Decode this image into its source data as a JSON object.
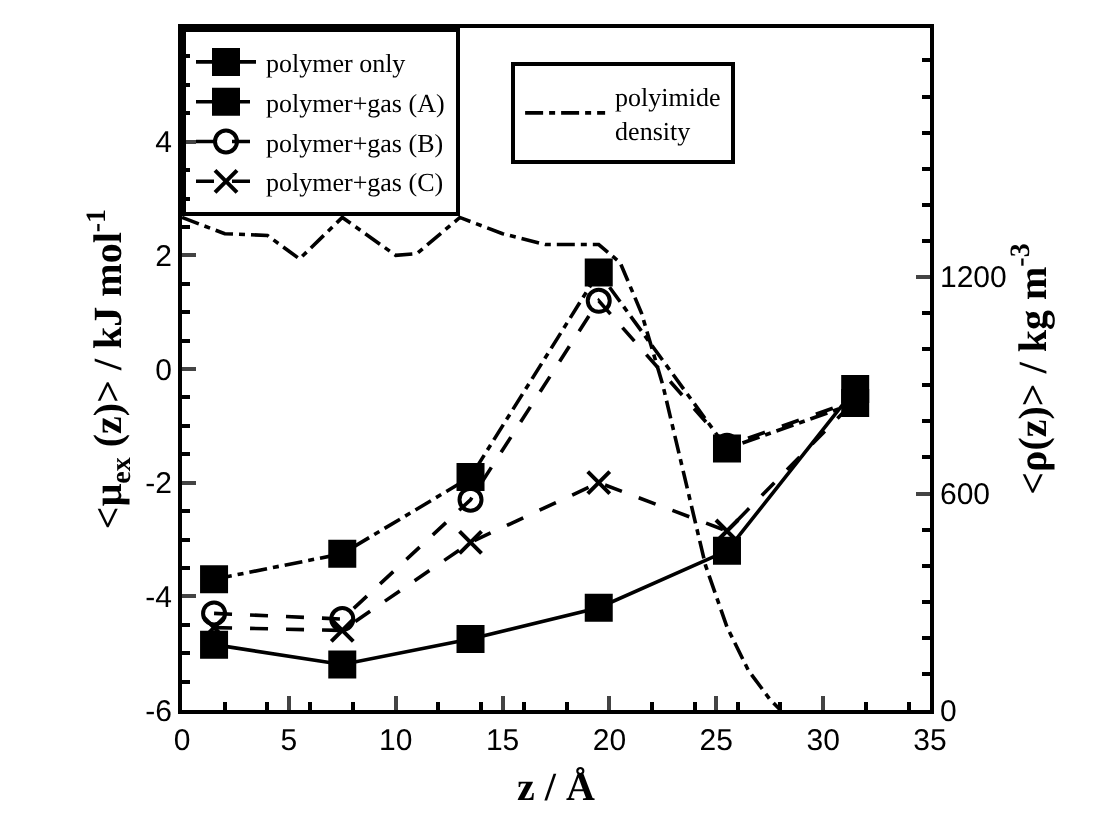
{
  "chart_data": {
    "type": "line",
    "xlabel": "z / Å",
    "ylabel": "<μ$_{ex}$ (z)> / kJ mol$^{-1}$",
    "y2label": "<ρ(z)> / kg m$^{-3}$",
    "xlim": [
      0,
      35
    ],
    "xticks": [
      0,
      5,
      10,
      15,
      20,
      25,
      30,
      35
    ],
    "ylim": [
      -6,
      6
    ],
    "yticks": [
      -6,
      -4,
      -2,
      0,
      2,
      4
    ],
    "y2lim": [
      0,
      1890
    ],
    "y2ticks": [
      0,
      600,
      1200
    ],
    "legend": "top left",
    "series": [
      {
        "name": "polymer only",
        "color": "#000000",
        "marker": "square",
        "line_style": "solid",
        "x": [
          1.5,
          7.5,
          13.5,
          19.5,
          25.5,
          31.5
        ],
        "values": [
          -4.85,
          -5.2,
          -4.75,
          -4.2,
          -3.2,
          -0.35
        ]
      },
      {
        "name": "polymer+gas (A)",
        "color": "#000000",
        "marker": "square",
        "line_style": "dotted",
        "x": [
          1.5,
          7.5,
          13.5,
          19.5,
          25.5,
          31.5
        ],
        "values": [
          -3.7,
          -3.25,
          -1.9,
          1.7,
          -1.4,
          -0.6
        ]
      },
      {
        "name": "polymer+gas (B)",
        "color": "#000000",
        "marker": "circle",
        "line_style": "dashed",
        "x": [
          1.5,
          7.5,
          13.5,
          19.5,
          25.5,
          31.5
        ],
        "values": [
          -4.3,
          -4.4,
          -2.3,
          1.2,
          -1.35,
          -0.55
        ]
      },
      {
        "name": "polymer+gas (C)",
        "color": "#000000",
        "marker": "cross",
        "line_style": "dashed",
        "x": [
          1.5,
          7.5,
          13.5,
          19.5,
          25.5,
          31.5
        ],
        "values": [
          -4.55,
          -4.6,
          -3.05,
          -2.0,
          -2.85,
          -0.55
        ]
      },
      {
        "name": "polyimide density",
        "color": "#000000",
        "marker": "none",
        "line_style": "dotted",
        "axis": "y2",
        "x": [
          0,
          2,
          4,
          5.5,
          7.5,
          10,
          11,
          13,
          15,
          17,
          19.5,
          20.5,
          21.5,
          22.5,
          23.5,
          24.5,
          25.5,
          26.5,
          27.5,
          28
        ],
        "values": [
          1365,
          1320,
          1315,
          1250,
          1365,
          1260,
          1265,
          1365,
          1320,
          1290,
          1290,
          1240,
          1100,
          900,
          650,
          400,
          230,
          110,
          30,
          0
        ]
      }
    ]
  }
}
